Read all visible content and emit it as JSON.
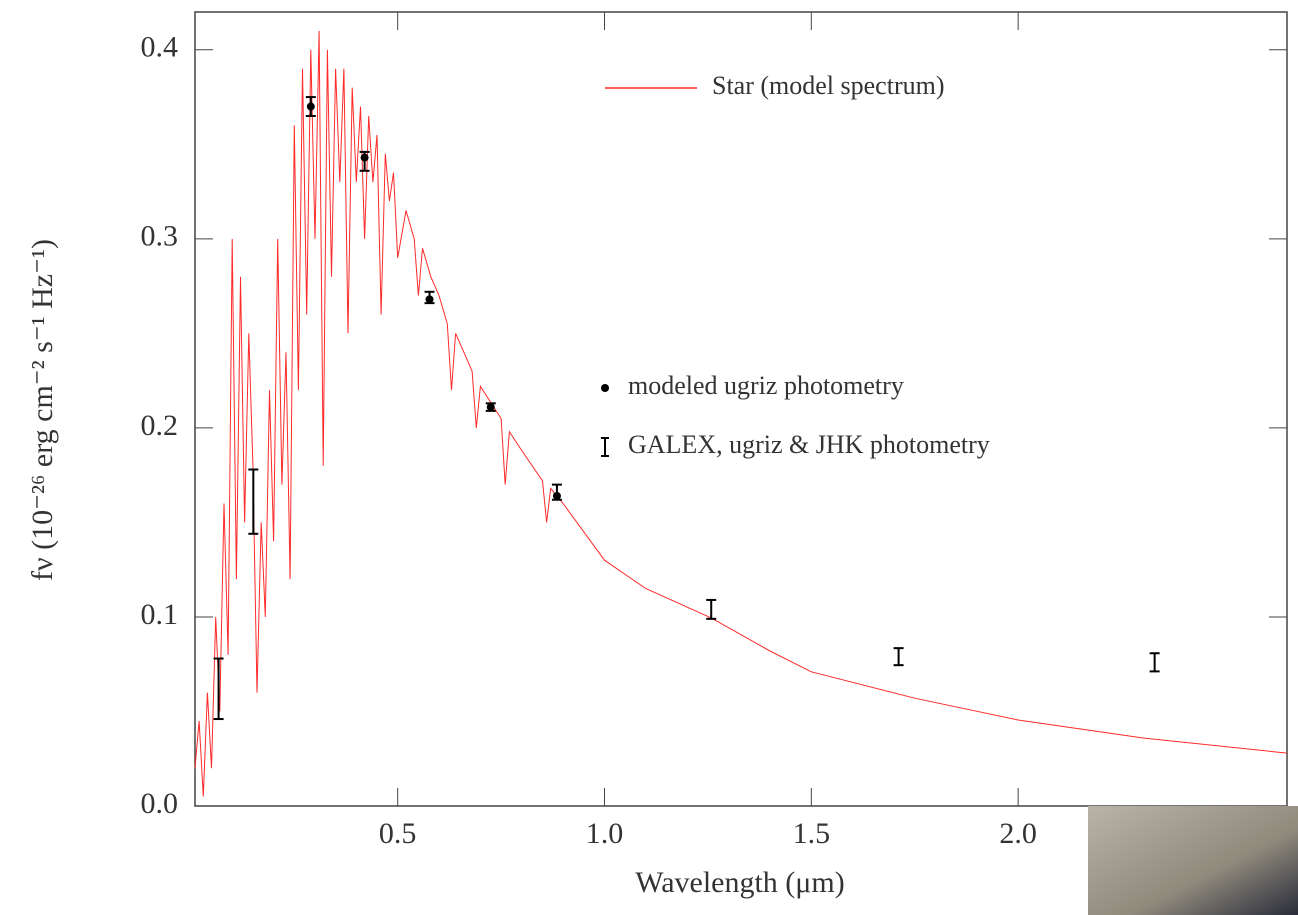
{
  "chart_data": {
    "type": "line",
    "xlabel": "Wavelength (μm)",
    "ylabel": "fν (10⁻²⁶ erg cm⁻² s⁻¹ Hz⁻¹)",
    "xlim": [
      0.01,
      2.65
    ],
    "ylim": [
      0,
      0.42
    ],
    "xticks": [
      0.5,
      {
        "value": 1,
        "label": "1.0"
      },
      1.5,
      {
        "value": 2,
        "label": "2.0"
      }
    ],
    "yticks": [
      {
        "value": 0,
        "label": "0.0"
      },
      0.1,
      0.2,
      0.3,
      0.4
    ],
    "series": [
      {
        "name": "Star (model spectrum)",
        "type": "line",
        "color": "#ff2a2a",
        "x": [
          0.01,
          0.02,
          0.03,
          0.04,
          0.05,
          0.06,
          0.07,
          0.08,
          0.09,
          0.1,
          0.11,
          0.12,
          0.13,
          0.14,
          0.15,
          0.16,
          0.17,
          0.18,
          0.19,
          0.2,
          0.21,
          0.22,
          0.23,
          0.24,
          0.25,
          0.26,
          0.27,
          0.28,
          0.29,
          0.3,
          0.31,
          0.32,
          0.33,
          0.34,
          0.35,
          0.36,
          0.37,
          0.38,
          0.39,
          0.4,
          0.41,
          0.42,
          0.43,
          0.44,
          0.45,
          0.46,
          0.47,
          0.48,
          0.49,
          0.5,
          0.52,
          0.54,
          0.55,
          0.56,
          0.58,
          0.6,
          0.62,
          0.63,
          0.64,
          0.66,
          0.68,
          0.69,
          0.7,
          0.75,
          0.76,
          0.77,
          0.8,
          0.85,
          0.86,
          0.87,
          0.9,
          1.0,
          1.1,
          1.258,
          1.4,
          1.5,
          1.75,
          2.0,
          2.3,
          2.65
        ],
        "values": [
          0.02,
          0.045,
          0.005,
          0.06,
          0.02,
          0.1,
          0.05,
          0.16,
          0.08,
          0.3,
          0.12,
          0.28,
          0.15,
          0.25,
          0.18,
          0.06,
          0.15,
          0.1,
          0.22,
          0.14,
          0.3,
          0.17,
          0.24,
          0.12,
          0.36,
          0.22,
          0.39,
          0.26,
          0.4,
          0.3,
          0.41,
          0.18,
          0.4,
          0.28,
          0.39,
          0.33,
          0.39,
          0.25,
          0.38,
          0.33,
          0.37,
          0.3,
          0.365,
          0.33,
          0.355,
          0.26,
          0.345,
          0.32,
          0.335,
          0.29,
          0.315,
          0.3,
          0.27,
          0.295,
          0.28,
          0.27,
          0.255,
          0.22,
          0.25,
          0.24,
          0.23,
          0.2,
          0.222,
          0.205,
          0.17,
          0.198,
          0.188,
          0.172,
          0.15,
          0.168,
          0.16,
          0.13,
          0.115,
          0.0995,
          0.082,
          0.071,
          0.057,
          0.0455,
          0.036,
          0.028
        ]
      },
      {
        "name": "modeled ugriz photometry",
        "type": "scatter",
        "color": "#000000",
        "x": [
          0.29,
          0.42,
          0.577,
          0.725,
          0.885
        ],
        "values": [
          0.37,
          0.343,
          0.268,
          0.211,
          0.164
        ]
      },
      {
        "name": "GALEX, ugriz & JHK photometry",
        "type": "errorbar",
        "color": "#000000",
        "x": [
          0.067,
          0.151,
          0.29,
          0.42,
          0.577,
          0.725,
          0.885,
          1.258,
          1.711,
          2.33
        ],
        "values": [
          0.062,
          0.161,
          0.37,
          0.341,
          0.269,
          0.211,
          0.166,
          0.104,
          0.079,
          0.076
        ],
        "errors": [
          0.016,
          0.017,
          0.005,
          0.005,
          0.003,
          0.002,
          0.004,
          0.005,
          0.0045,
          0.0048
        ]
      }
    ]
  }
}
